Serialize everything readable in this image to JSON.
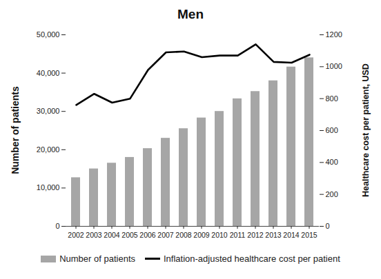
{
  "chart_data": {
    "type": "bar",
    "title": "Men",
    "categories": [
      "2002",
      "2003",
      "2004",
      "2005",
      "2006",
      "2007",
      "2008",
      "2009",
      "2010",
      "2011",
      "2012",
      "2013",
      "2014",
      "2015"
    ],
    "series": [
      {
        "name": "Number of patients",
        "type": "bar",
        "color": "#a6a6a6",
        "values": [
          12700,
          15000,
          16500,
          18000,
          20300,
          23000,
          25500,
          28300,
          30000,
          33300,
          35200,
          38000,
          41600,
          44000
        ]
      },
      {
        "name": "Inflation-adjusted healthcare cost per patient",
        "type": "line",
        "color": "#000000",
        "axis": "y2",
        "values": [
          760,
          830,
          775,
          800,
          980,
          1090,
          1095,
          1060,
          1070,
          1070,
          1140,
          1030,
          1025,
          1075
        ]
      }
    ],
    "ylabel": "Number of patients",
    "y2label": "Healthcare cost per patient, USD",
    "ylim": [
      0,
      50000
    ],
    "yticks": [
      0,
      {
        "value": 10000,
        "label": "10,000"
      },
      {
        "value": 20000,
        "label": "20,000"
      },
      {
        "value": 30000,
        "label": "30,000"
      },
      {
        "value": 40000,
        "label": "40,000"
      },
      {
        "value": 50000,
        "label": "50,000"
      }
    ],
    "y2lim": [
      0,
      1200
    ],
    "y2ticks": [
      0,
      200,
      400,
      600,
      800,
      1000,
      1200
    ],
    "legend": "bottom"
  }
}
